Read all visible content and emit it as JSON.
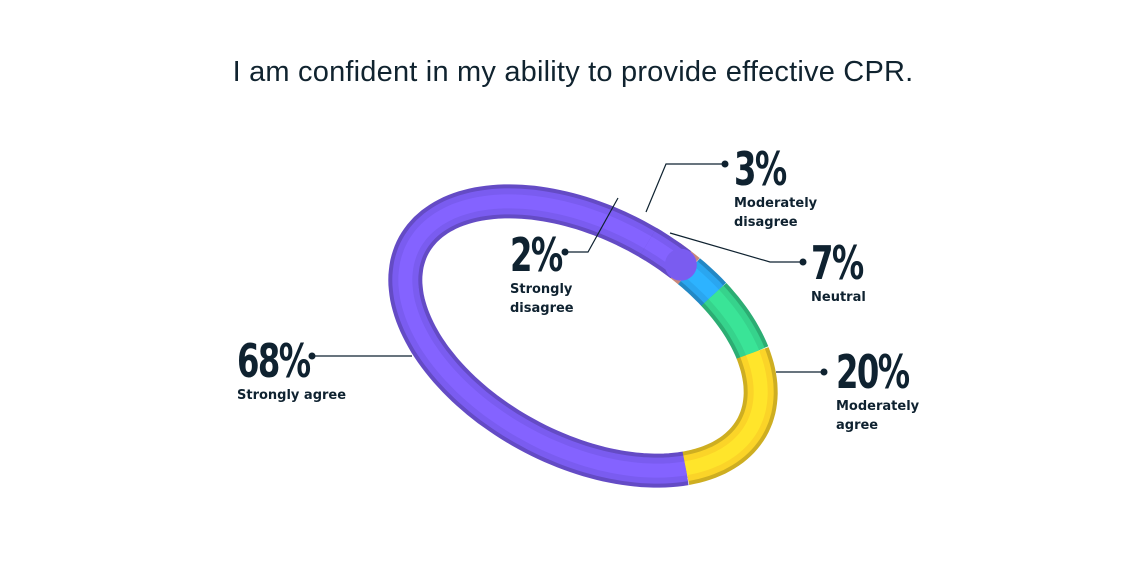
{
  "chart_data": {
    "type": "pie",
    "title": "I am confident in my ability to provide effective CPR.",
    "slices": [
      {
        "label_lines": [
          "Strongly agree"
        ],
        "label": "Strongly agree",
        "value": 68,
        "display": "68%",
        "color": "#7a5cf0"
      },
      {
        "label_lines": [
          "Moderately",
          "agree"
        ],
        "label": "Moderately agree",
        "value": 20,
        "display": "20%",
        "color": "#fbd428"
      },
      {
        "label_lines": [
          "Neutral"
        ],
        "label": "Neutral",
        "value": 7,
        "display": "7%",
        "color": "#36d38c"
      },
      {
        "label_lines": [
          "Moderately",
          "disagree"
        ],
        "label": "Moderately disagree",
        "value": 3,
        "display": "3%",
        "color": "#2aa6f0"
      },
      {
        "label_lines": [
          "Strongly",
          "disagree"
        ],
        "label": "Strongly disagree",
        "value": 2,
        "display": "2%",
        "color": "#f4a394"
      }
    ]
  }
}
